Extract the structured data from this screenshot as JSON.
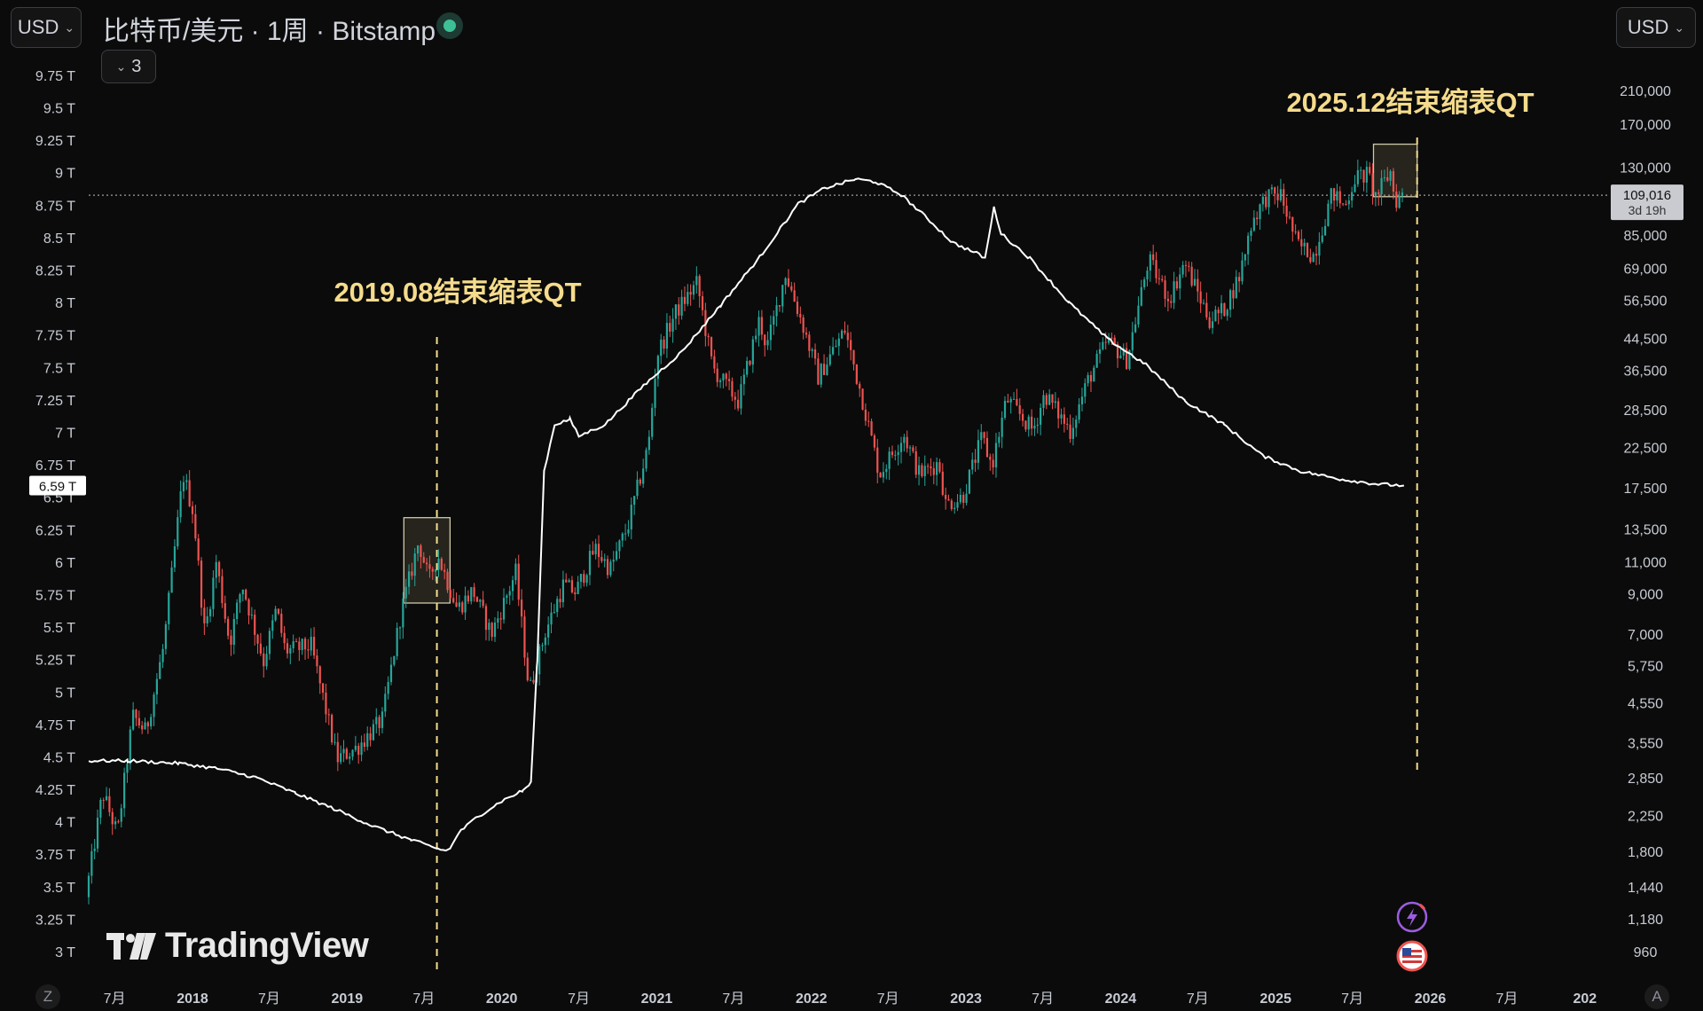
{
  "header": {
    "currency_left": "USD",
    "currency_right": "USD",
    "title": "比特币/美元 · 1周 · Bitstamp",
    "indicator_count": "3"
  },
  "branding": {
    "logo_text": "TradingView"
  },
  "corners": {
    "left": "Z",
    "right": "A"
  },
  "colors": {
    "background": "#0b0b0b",
    "up": "#26a69a",
    "down": "#ef5350",
    "line": "#ffffff",
    "annotation": "#f5dc8c",
    "status": "#3fbf95"
  },
  "chart_data": {
    "type": "line",
    "description_free": true,
    "x_axis": {
      "type": "date",
      "range": [
        "2017-05-01",
        "2027-03-01"
      ],
      "ticks": [
        {
          "date": "2017-07-01",
          "label": "7月",
          "bold": false
        },
        {
          "date": "2018-01-01",
          "label": "2018",
          "bold": true
        },
        {
          "date": "2018-07-01",
          "label": "7月",
          "bold": false
        },
        {
          "date": "2019-01-01",
          "label": "2019",
          "bold": true
        },
        {
          "date": "2019-07-01",
          "label": "7月",
          "bold": false
        },
        {
          "date": "2020-01-01",
          "label": "2020",
          "bold": true
        },
        {
          "date": "2020-07-01",
          "label": "7月",
          "bold": false
        },
        {
          "date": "2021-01-01",
          "label": "2021",
          "bold": true
        },
        {
          "date": "2021-07-01",
          "label": "7月",
          "bold": false
        },
        {
          "date": "2022-01-01",
          "label": "2022",
          "bold": true
        },
        {
          "date": "2022-07-01",
          "label": "7月",
          "bold": false
        },
        {
          "date": "2023-01-01",
          "label": "2023",
          "bold": true
        },
        {
          "date": "2023-07-01",
          "label": "7月",
          "bold": false
        },
        {
          "date": "2024-01-01",
          "label": "2024",
          "bold": true
        },
        {
          "date": "2024-07-01",
          "label": "7月",
          "bold": false
        },
        {
          "date": "2025-01-01",
          "label": "2025",
          "bold": true
        },
        {
          "date": "2025-07-01",
          "label": "7月",
          "bold": false
        },
        {
          "date": "2026-01-01",
          "label": "2026",
          "bold": true
        },
        {
          "date": "2026-07-01",
          "label": "7月",
          "bold": false
        },
        {
          "date": "2027-01-01",
          "label": "202",
          "bold": true
        }
      ]
    },
    "left_axis": {
      "unit": "T",
      "range": [
        2.85,
        9.92
      ],
      "ticks": [
        {
          "value": 9.75,
          "label": "9.75 T"
        },
        {
          "value": 9.5,
          "label": "9.5 T"
        },
        {
          "value": 9.25,
          "label": "9.25 T"
        },
        {
          "value": 9.0,
          "label": "9 T"
        },
        {
          "value": 8.75,
          "label": "8.75 T"
        },
        {
          "value": 8.5,
          "label": "8.5 T"
        },
        {
          "value": 8.25,
          "label": "8.25 T"
        },
        {
          "value": 8.0,
          "label": "8 T"
        },
        {
          "value": 7.75,
          "label": "7.75 T"
        },
        {
          "value": 7.5,
          "label": "7.5 T"
        },
        {
          "value": 7.25,
          "label": "7.25 T"
        },
        {
          "value": 7.0,
          "label": "7 T"
        },
        {
          "value": 6.75,
          "label": "6.75 T"
        },
        {
          "value": 6.5,
          "label": "6.5 T"
        },
        {
          "value": 6.25,
          "label": "6.25 T"
        },
        {
          "value": 6.0,
          "label": "6 T"
        },
        {
          "value": 5.75,
          "label": "5.75 T"
        },
        {
          "value": 5.5,
          "label": "5.5 T"
        },
        {
          "value": 5.25,
          "label": "5.25 T"
        },
        {
          "value": 5.0,
          "label": "5 T"
        },
        {
          "value": 4.75,
          "label": "4.75 T"
        },
        {
          "value": 4.5,
          "label": "4.5 T"
        },
        {
          "value": 4.25,
          "label": "4.25 T"
        },
        {
          "value": 4.0,
          "label": "4 T"
        },
        {
          "value": 3.75,
          "label": "3.75 T"
        },
        {
          "value": 3.5,
          "label": "3.5 T"
        },
        {
          "value": 3.25,
          "label": "3.25 T"
        },
        {
          "value": 3.0,
          "label": "3 T"
        }
      ],
      "current_label": {
        "value": 6.59,
        "label": "6.59 T"
      }
    },
    "right_axis": {
      "scale": "log",
      "range": [
        850,
        265000
      ],
      "ticks": [
        {
          "value": 210000,
          "label": "210,000"
        },
        {
          "value": 170000,
          "label": "170,000"
        },
        {
          "value": 130000,
          "label": "130,000"
        },
        {
          "value": 85000,
          "label": "85,000"
        },
        {
          "value": 69000,
          "label": "69,000"
        },
        {
          "value": 56500,
          "label": "56,500"
        },
        {
          "value": 44500,
          "label": "44,500"
        },
        {
          "value": 36500,
          "label": "36,500"
        },
        {
          "value": 28500,
          "label": "28,500"
        },
        {
          "value": 22500,
          "label": "22,500"
        },
        {
          "value": 17500,
          "label": "17,500"
        },
        {
          "value": 13500,
          "label": "13,500"
        },
        {
          "value": 11000,
          "label": "11,000"
        },
        {
          "value": 9000,
          "label": "9,000"
        },
        {
          "value": 7000,
          "label": "7,000"
        },
        {
          "value": 5750,
          "label": "5,750"
        },
        {
          "value": 4550,
          "label": "4,550"
        },
        {
          "value": 3550,
          "label": "3,550"
        },
        {
          "value": 2850,
          "label": "2,850"
        },
        {
          "value": 2250,
          "label": "2,250"
        },
        {
          "value": 1800,
          "label": "1,800"
        },
        {
          "value": 1440,
          "label": "1,440"
        },
        {
          "value": 1180,
          "label": "1,180"
        },
        {
          "value": 960,
          "label": "960"
        }
      ],
      "price_label": {
        "value": 109016,
        "label": "109,016",
        "countdown": "3d 19h"
      }
    },
    "price_series": {
      "anchors": [
        [
          "2017-05-01",
          1350
        ],
        [
          "2017-06-10",
          2600
        ],
        [
          "2017-07-15",
          2000
        ],
        [
          "2017-08-20",
          4200
        ],
        [
          "2017-09-20",
          3800
        ],
        [
          "2017-11-01",
          6500
        ],
        [
          "2017-12-17",
          19000
        ],
        [
          "2018-01-10",
          15000
        ],
        [
          "2018-02-06",
          7000
        ],
        [
          "2018-03-05",
          11000
        ],
        [
          "2018-04-06",
          6600
        ],
        [
          "2018-05-05",
          9600
        ],
        [
          "2018-06-25",
          5900
        ],
        [
          "2018-07-25",
          8200
        ],
        [
          "2018-08-15",
          6300
        ],
        [
          "2018-10-15",
          6500
        ],
        [
          "2018-11-20",
          4300
        ],
        [
          "2018-12-15",
          3200
        ],
        [
          "2019-02-01",
          3450
        ],
        [
          "2019-04-01",
          4100
        ],
        [
          "2019-05-15",
          8000
        ],
        [
          "2019-06-26",
          12500
        ],
        [
          "2019-07-20",
          9800
        ],
        [
          "2019-08-10",
          11500
        ],
        [
          "2019-09-25",
          8200
        ],
        [
          "2019-11-01",
          9200
        ],
        [
          "2019-12-15",
          7000
        ],
        [
          "2020-02-10",
          10300
        ],
        [
          "2020-03-13",
          4900
        ],
        [
          "2020-04-20",
          7100
        ],
        [
          "2020-06-01",
          9500
        ],
        [
          "2020-07-01",
          9100
        ],
        [
          "2020-08-15",
          12000
        ],
        [
          "2020-09-20",
          10500
        ],
        [
          "2020-11-01",
          13800
        ],
        [
          "2020-12-20",
          23000
        ],
        [
          "2021-01-08",
          40000
        ],
        [
          "2021-02-20",
          52000
        ],
        [
          "2021-04-13",
          63000
        ],
        [
          "2021-05-20",
          37000
        ],
        [
          "2021-07-20",
          30000
        ],
        [
          "2021-09-07",
          50000
        ],
        [
          "2021-09-25",
          42000
        ],
        [
          "2021-11-08",
          67000
        ],
        [
          "2021-12-20",
          48000
        ],
        [
          "2022-01-24",
          35000
        ],
        [
          "2022-03-28",
          47000
        ],
        [
          "2022-05-10",
          30000
        ],
        [
          "2022-06-18",
          19000
        ],
        [
          "2022-08-14",
          24500
        ],
        [
          "2022-09-20",
          19000
        ],
        [
          "2022-11-05",
          20500
        ],
        [
          "2022-11-21",
          15800
        ],
        [
          "2022-12-31",
          16500
        ],
        [
          "2023-02-15",
          24000
        ],
        [
          "2023-03-10",
          20000
        ],
        [
          "2023-04-14",
          30500
        ],
        [
          "2023-06-15",
          25000
        ],
        [
          "2023-07-13",
          31500
        ],
        [
          "2023-09-11",
          25000
        ],
        [
          "2023-10-24",
          34500
        ],
        [
          "2023-12-08",
          44000
        ],
        [
          "2024-01-23",
          39000
        ],
        [
          "2024-03-14",
          73000
        ],
        [
          "2024-05-01",
          57000
        ],
        [
          "2024-06-07",
          71500
        ],
        [
          "2024-08-05",
          50000
        ],
        [
          "2024-09-06",
          53000
        ],
        [
          "2024-10-15",
          66000
        ],
        [
          "2024-11-13",
          93000
        ],
        [
          "2024-12-17",
          108000
        ],
        [
          "2025-01-20",
          109000
        ],
        [
          "2025-02-28",
          80000
        ],
        [
          "2025-04-08",
          75000
        ],
        [
          "2025-05-22",
          111000
        ],
        [
          "2025-06-20",
          101000
        ],
        [
          "2025-07-14",
          122000
        ],
        [
          "2025-08-14",
          124000
        ],
        [
          "2025-09-01",
          108000
        ],
        [
          "2025-10-06",
          126000
        ],
        [
          "2025-10-17",
          105000
        ],
        [
          "2025-11-02",
          109016
        ]
      ]
    },
    "line_series": {
      "axis": "left",
      "anchors": [
        [
          "2017-05-01",
          4.47
        ],
        [
          "2017-08-01",
          4.47
        ],
        [
          "2017-12-01",
          4.45
        ],
        [
          "2018-03-01",
          4.41
        ],
        [
          "2018-06-01",
          4.34
        ],
        [
          "2018-09-01",
          4.22
        ],
        [
          "2018-12-01",
          4.1
        ],
        [
          "2019-03-01",
          3.97
        ],
        [
          "2019-06-01",
          3.86
        ],
        [
          "2019-08-15",
          3.78
        ],
        [
          "2019-09-01",
          3.79
        ],
        [
          "2019-09-20",
          3.91
        ],
        [
          "2019-11-01",
          4.03
        ],
        [
          "2020-01-01",
          4.16
        ],
        [
          "2020-02-20",
          4.24
        ],
        [
          "2020-03-10",
          4.3
        ],
        [
          "2020-03-25",
          5.25
        ],
        [
          "2020-04-10",
          6.7
        ],
        [
          "2020-05-05",
          7.06
        ],
        [
          "2020-06-10",
          7.1
        ],
        [
          "2020-07-01",
          6.97
        ],
        [
          "2020-09-01",
          7.06
        ],
        [
          "2020-12-01",
          7.36
        ],
        [
          "2021-03-01",
          7.62
        ],
        [
          "2021-06-01",
          7.98
        ],
        [
          "2021-09-01",
          8.35
        ],
        [
          "2021-12-01",
          8.76
        ],
        [
          "2022-02-01",
          8.88
        ],
        [
          "2022-04-15",
          8.95
        ],
        [
          "2022-06-01",
          8.93
        ],
        [
          "2022-08-01",
          8.83
        ],
        [
          "2022-10-01",
          8.65
        ],
        [
          "2022-12-01",
          8.46
        ],
        [
          "2023-02-01",
          8.37
        ],
        [
          "2023-02-15",
          8.34
        ],
        [
          "2023-03-08",
          8.73
        ],
        [
          "2023-03-25",
          8.53
        ],
        [
          "2023-06-01",
          8.34
        ],
        [
          "2023-09-01",
          8.0
        ],
        [
          "2023-12-01",
          7.72
        ],
        [
          "2024-03-01",
          7.52
        ],
        [
          "2024-06-01",
          7.24
        ],
        [
          "2024-09-01",
          7.06
        ],
        [
          "2024-12-01",
          6.82
        ],
        [
          "2025-03-01",
          6.7
        ],
        [
          "2025-06-01",
          6.64
        ],
        [
          "2025-09-01",
          6.6
        ],
        [
          "2025-10-31",
          6.59
        ]
      ]
    },
    "annotations": [
      {
        "text": "2019.08结束缩表QT",
        "date": "2019-08-01"
      },
      {
        "text": "2025.12结束缩表QT",
        "date": "2025-12-01"
      }
    ],
    "highlight_boxes": [
      {
        "from": "2019-05-15",
        "to": "2019-09-01",
        "price_low": 8500,
        "price_high": 14500
      },
      {
        "from": "2025-08-20",
        "to": "2025-12-01",
        "price_low": 108000,
        "price_high": 150000
      }
    ],
    "grid": false,
    "legend": "none"
  }
}
